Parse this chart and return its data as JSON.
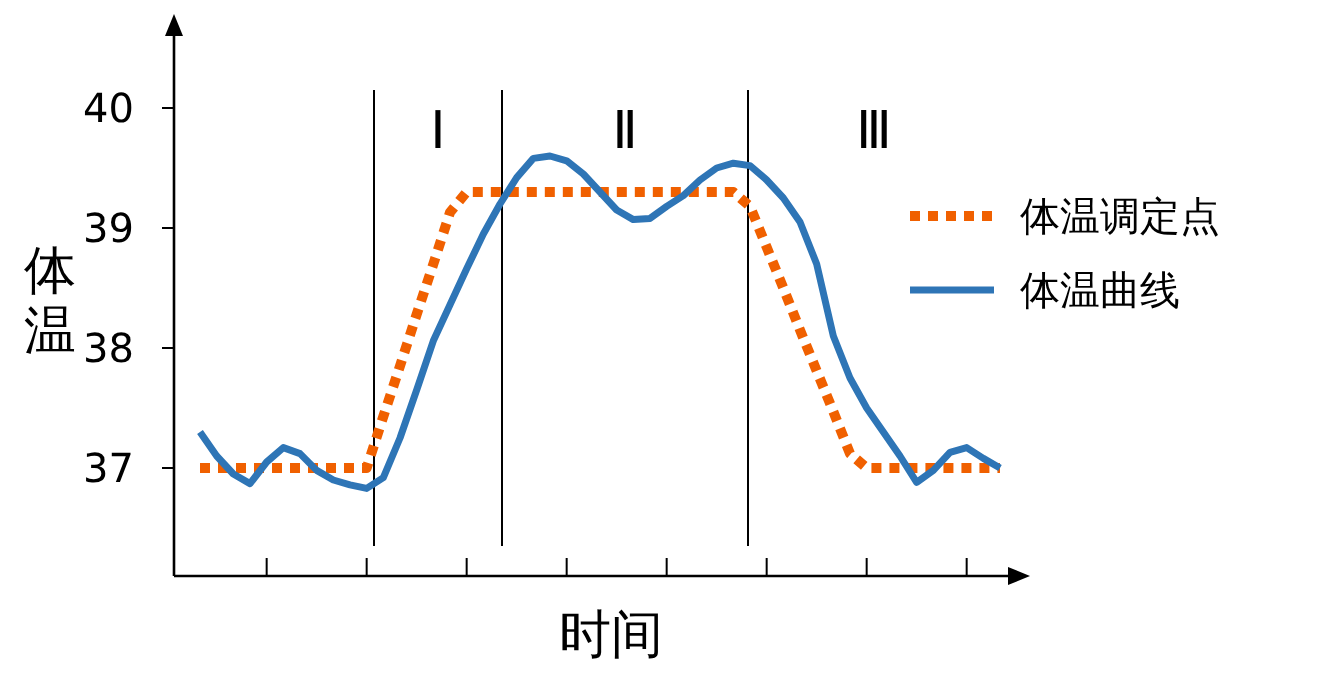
{
  "chart_data": {
    "type": "line",
    "xlabel": "时间",
    "ylabel": "体温",
    "categories": [
      null,
      null,
      null,
      null,
      null,
      null,
      null,
      null,
      null,
      null,
      null,
      null,
      null,
      null,
      null,
      null,
      null,
      null,
      null,
      null,
      null,
      null,
      null,
      null,
      null,
      null,
      null,
      null,
      null,
      null,
      null,
      null,
      null,
      null,
      null,
      null,
      null,
      null,
      null,
      null,
      null,
      null,
      null,
      null,
      null,
      null,
      null,
      null,
      null
    ],
    "ylim": [
      36.1,
      40.6
    ],
    "yticks": [
      37,
      38,
      39,
      40
    ],
    "legend": "right",
    "series": [
      {
        "name": "体温调定点",
        "color": "#f06000",
        "line_style": "dotted",
        "values": [
          37,
          37,
          37,
          37,
          37,
          37,
          37,
          37,
          37,
          37,
          37,
          37.43,
          37.85,
          38.28,
          38.7,
          39.13,
          39.3,
          39.3,
          39.3,
          39.3,
          39.3,
          39.3,
          39.3,
          39.3,
          39.3,
          39.3,
          39.3,
          39.3,
          39.3,
          39.3,
          39.3,
          39.3,
          39.3,
          39.18,
          38.84,
          38.5,
          38.15,
          37.81,
          37.47,
          37.12,
          37,
          37,
          37,
          37,
          37,
          37,
          37,
          37,
          37
        ]
      },
      {
        "name": "体温曲线",
        "color": "#2e75b6",
        "line_style": "solid",
        "values": [
          37.3,
          37.1,
          36.95,
          36.87,
          37.05,
          37.17,
          37.12,
          36.98,
          36.9,
          36.86,
          36.83,
          36.92,
          37.25,
          37.65,
          38.06,
          38.36,
          38.66,
          38.95,
          39.2,
          39.42,
          39.58,
          39.6,
          39.56,
          39.45,
          39.3,
          39.15,
          39.07,
          39.08,
          39.18,
          39.27,
          39.4,
          39.5,
          39.54,
          39.52,
          39.4,
          39.25,
          39.05,
          38.7,
          38.1,
          37.75,
          37.5,
          37.3,
          37.1,
          36.88,
          36.98,
          37.13,
          37.17,
          37.08,
          37.0
        ]
      }
    ],
    "annotations": [
      "Ⅰ",
      "Ⅱ",
      "Ⅲ"
    ]
  }
}
